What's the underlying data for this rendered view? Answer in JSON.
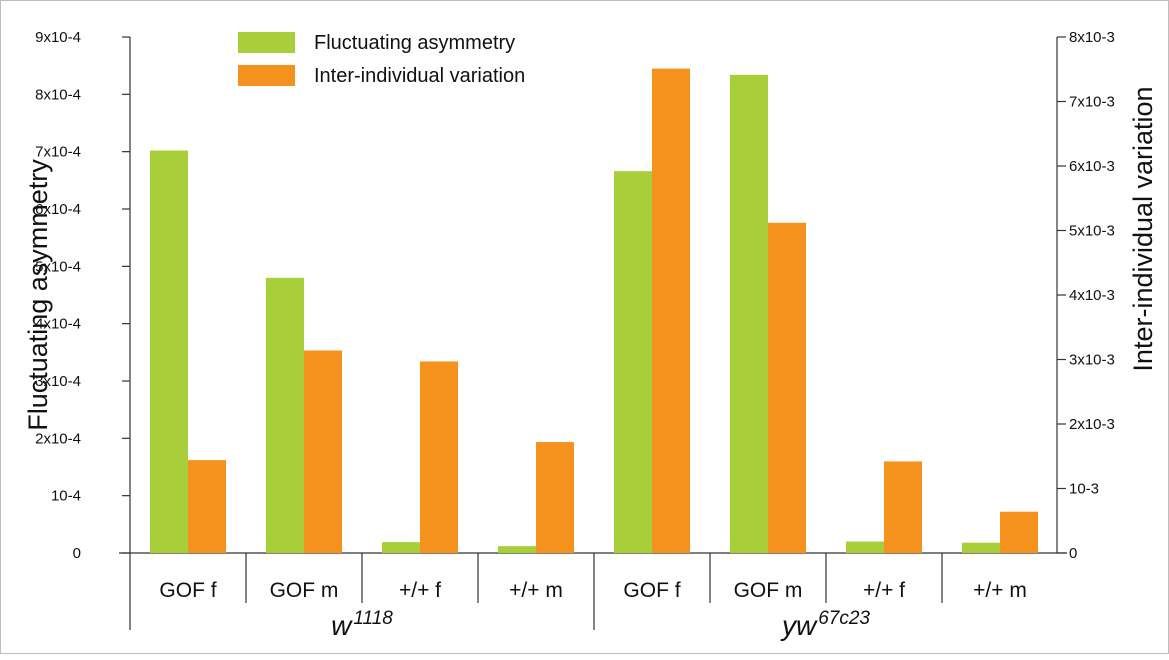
{
  "chart_data": {
    "type": "bar",
    "ylabel": "Fluctuating asymmetry",
    "y2label": "Inter-individual variation",
    "categories": [
      "GOF f",
      "GOF m",
      "+/+ f",
      "+/+ m",
      "GOF f",
      "GOF m",
      "+/+ f",
      "+/+ m"
    ],
    "groups": [
      {
        "base": "w",
        "sup": "1118",
        "categories": [
          0,
          1,
          2,
          3
        ]
      },
      {
        "base": "yw",
        "sup": "67c23",
        "categories": [
          4,
          5,
          6,
          7
        ]
      }
    ],
    "series": [
      {
        "name": "Fluctuating asymmetry",
        "axis": "left",
        "color": "#a8cf3a",
        "values": [
          0.000702,
          0.00048,
          1.9e-05,
          1.2e-05,
          0.000666,
          0.000834,
          2e-05,
          1.8e-05
        ]
      },
      {
        "name": "Inter-individual variation",
        "axis": "right",
        "color": "#f5921e",
        "values": [
          0.00144,
          0.00314,
          0.00297,
          0.00172,
          0.00751,
          0.00512,
          0.00142,
          0.00064
        ]
      }
    ],
    "ylim": [
      0,
      0.0009
    ],
    "y2lim": [
      0,
      0.008
    ],
    "yticks": [
      {
        "value": 0,
        "label": "0"
      },
      {
        "value": 0.0001,
        "label": "10-4"
      },
      {
        "value": 0.0002,
        "label": "2x10-4"
      },
      {
        "value": 0.0003,
        "label": "3x10-4"
      },
      {
        "value": 0.0004,
        "label": "4x10-4"
      },
      {
        "value": 0.0005,
        "label": "5x10-4"
      },
      {
        "value": 0.0006,
        "label": "6x10-4"
      },
      {
        "value": 0.0007,
        "label": "7x10-4"
      },
      {
        "value": 0.0008,
        "label": "8x10-4"
      },
      {
        "value": 0.0009,
        "label": "9x10-4"
      }
    ],
    "y2ticks": [
      {
        "value": 0,
        "label": "0"
      },
      {
        "value": 0.001,
        "label": "10-3"
      },
      {
        "value": 0.002,
        "label": "2x10-3"
      },
      {
        "value": 0.003,
        "label": "3x10-3"
      },
      {
        "value": 0.004,
        "label": "4x10-3"
      },
      {
        "value": 0.005,
        "label": "5x10-3"
      },
      {
        "value": 0.006,
        "label": "6x10-3"
      },
      {
        "value": 0.007,
        "label": "7x10-3"
      },
      {
        "value": 0.008,
        "label": "8x10-3"
      }
    ],
    "legend": "top-left",
    "grid": false
  }
}
